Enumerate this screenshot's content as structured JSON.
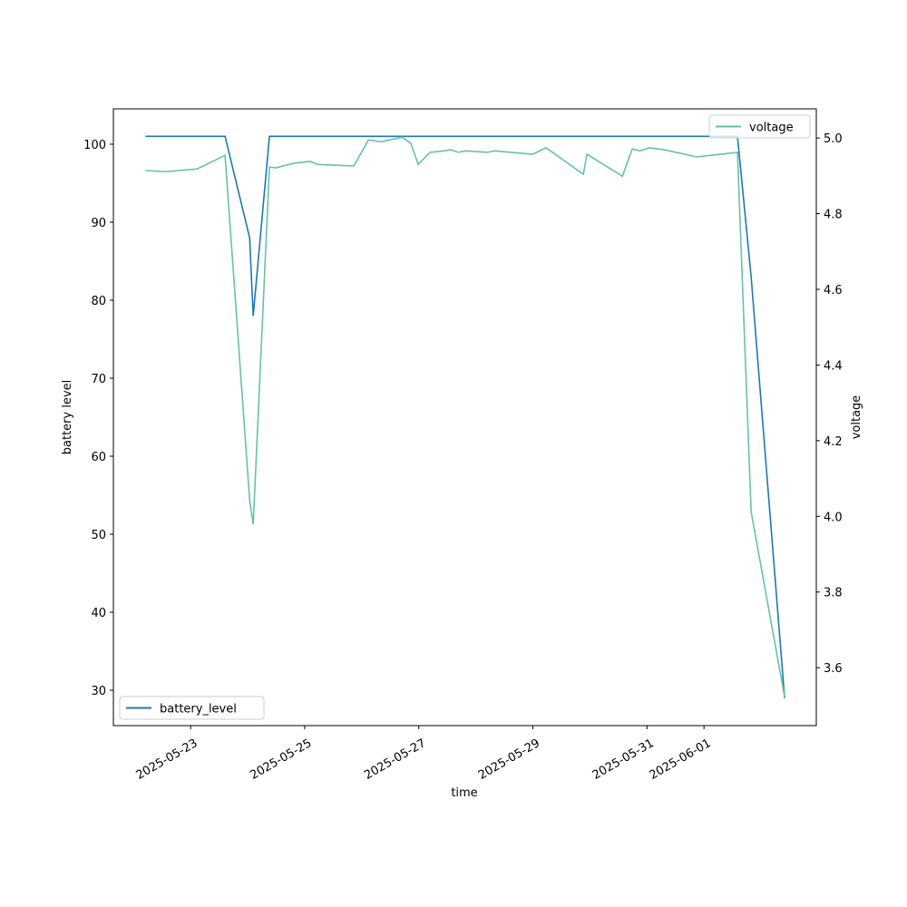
{
  "chart_data": {
    "type": "line",
    "x": [
      "2025-05-22T05:00",
      "2025-05-22T13:40",
      "2025-05-23T02:40",
      "2025-05-23T14:30",
      "2025-05-24T00:50",
      "2025-05-24T02:20",
      "2025-05-24T09:10",
      "2025-05-24T11:50",
      "2025-05-24T19:10",
      "2025-05-25T02:20",
      "2025-05-25T05:25",
      "2025-05-25T20:40",
      "2025-05-26T02:50",
      "2025-05-26T08:10",
      "2025-05-26T16:55",
      "2025-05-26T20:40",
      "2025-05-26T23:45",
      "2025-05-27T04:45",
      "2025-05-27T10:50",
      "2025-05-27T13:30",
      "2025-05-27T16:35",
      "2025-05-27T19:35",
      "2025-05-28T04:45",
      "2025-05-28T07:50",
      "2025-05-28T23:50",
      "2025-05-29T05:35",
      "2025-05-29T21:15",
      "2025-05-29T22:45",
      "2025-05-30T13:40",
      "2025-05-30T17:50",
      "2025-05-30T20:55",
      "2025-05-31T01:05",
      "2025-05-31T07:10",
      "2025-05-31T20:55",
      "2025-06-01T14:05",
      "2025-06-01T19:50",
      "2025-06-02T09:55"
    ],
    "series": [
      {
        "name": "battery_level",
        "color": "#1f77b4",
        "axis": "y",
        "values": [
          101,
          101,
          101,
          101,
          88,
          78,
          101,
          101,
          101,
          101,
          101,
          101,
          101,
          101,
          101,
          101,
          101,
          101,
          101,
          101,
          101,
          101,
          101,
          101,
          101,
          101,
          101,
          101,
          101,
          101,
          101,
          101,
          101,
          101,
          101,
          83,
          29
        ]
      },
      {
        "name": "voltage",
        "color": "#66c2a5",
        "axis": "y2",
        "values": [
          4.914,
          4.911,
          4.918,
          4.954,
          4.043,
          3.979,
          4.923,
          4.921,
          4.933,
          4.938,
          4.93,
          4.926,
          4.995,
          4.99,
          5.002,
          4.986,
          4.93,
          4.962,
          4.966,
          4.969,
          4.962,
          4.966,
          4.962,
          4.966,
          4.957,
          4.974,
          4.904,
          4.957,
          4.899,
          4.971,
          4.966,
          4.974,
          4.969,
          4.95,
          4.962,
          4.012,
          3.523
        ]
      }
    ],
    "xlabel": "time",
    "ylabel": "battery level",
    "y2label": "voltage",
    "xlim": [
      "2025-05-21T15:30",
      "2025-06-02T23:15"
    ],
    "xticks": [
      "2025-05-23",
      "2025-05-25",
      "2025-05-27",
      "2025-05-29",
      "2025-05-31",
      "2025-06-01"
    ],
    "ylim": [
      25.47,
      104.53
    ],
    "yticks": [
      30,
      40,
      50,
      60,
      70,
      80,
      90,
      100
    ],
    "y2lim": [
      3.447,
      5.077
    ],
    "y2ticks": [
      3.6,
      3.8,
      {
        "value": 4,
        "label": "4.0"
      },
      4.2,
      4.4,
      4.6,
      4.8,
      {
        "value": 5,
        "label": "5.0"
      }
    ],
    "legend_y": "lower left",
    "legend_y2": "upper right",
    "grid": false
  }
}
